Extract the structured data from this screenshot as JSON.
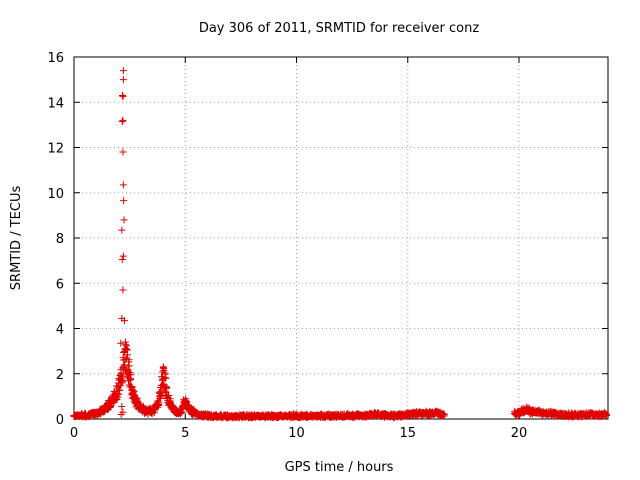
{
  "chart_data": {
    "type": "scatter",
    "title": "Day 306 of 2011, SRMTID for receiver conz",
    "xlabel": "GPS time / hours",
    "ylabel": "SRMTID / TECUs",
    "xlim": [
      0,
      24
    ],
    "ylim": [
      0,
      16
    ],
    "xticks": [
      0,
      5,
      10,
      15,
      20
    ],
    "yticks": [
      0,
      2,
      4,
      6,
      8,
      10,
      12,
      14,
      16
    ],
    "grid": true,
    "marker": "+",
    "series_color": "#e00000",
    "series": [
      {
        "name": "SRMTID",
        "x": [
          2.22,
          2.22,
          2.18,
          2.2,
          2.2,
          2.17,
          2.2,
          2.22,
          2.23,
          2.25,
          2.15,
          2.22,
          2.17,
          2.2,
          2.15,
          2.27,
          2.1,
          2.12,
          2.2,
          2.15
        ],
        "y": [
          15.4,
          15.0,
          14.3,
          14.25,
          13.2,
          13.15,
          11.8,
          10.35,
          9.65,
          8.8,
          8.35,
          7.2,
          7.05,
          5.7,
          4.45,
          4.35,
          3.35,
          0.2,
          0.3,
          0.55
        ]
      }
    ],
    "dense_envelope": {
      "description": "continuous dense band of points",
      "segments": [
        {
          "x": [
            0.0,
            0.5,
            1.0,
            1.3,
            1.6,
            1.8,
            2.0,
            2.1,
            2.2,
            2.3,
            2.35,
            2.4,
            2.5,
            2.6,
            2.8,
            3.0,
            3.3,
            3.6,
            3.8,
            3.95,
            4.0,
            4.05,
            4.1,
            4.2,
            4.35,
            4.6,
            4.8,
            4.9,
            5.0,
            5.1,
            5.3,
            5.6,
            6.0,
            7.0,
            8.0,
            9.0,
            10.0,
            11.0,
            12.0,
            13.0,
            13.5,
            14.0,
            14.5,
            15.0,
            15.5,
            16.0,
            16.5,
            16.65
          ],
          "y": [
            0.15,
            0.18,
            0.25,
            0.4,
            0.7,
            1.0,
            1.4,
            1.8,
            2.3,
            2.9,
            2.85,
            2.7,
            2.0,
            1.3,
            0.8,
            0.5,
            0.35,
            0.4,
            0.8,
            1.6,
            2.1,
            2.0,
            1.6,
            1.1,
            0.6,
            0.35,
            0.3,
            0.6,
            0.85,
            0.6,
            0.35,
            0.2,
            0.15,
            0.12,
            0.12,
            0.13,
            0.15,
            0.14,
            0.16,
            0.17,
            0.2,
            0.18,
            0.15,
            0.2,
            0.25,
            0.28,
            0.25,
            0.2
          ]
        },
        {
          "x": [
            19.8,
            20.0,
            20.3,
            20.5,
            21.0,
            21.5,
            22.0,
            22.5,
            23.0,
            23.5,
            23.95
          ],
          "y": [
            0.25,
            0.3,
            0.45,
            0.35,
            0.3,
            0.25,
            0.2,
            0.18,
            0.2,
            0.22,
            0.2
          ]
        }
      ]
    }
  }
}
